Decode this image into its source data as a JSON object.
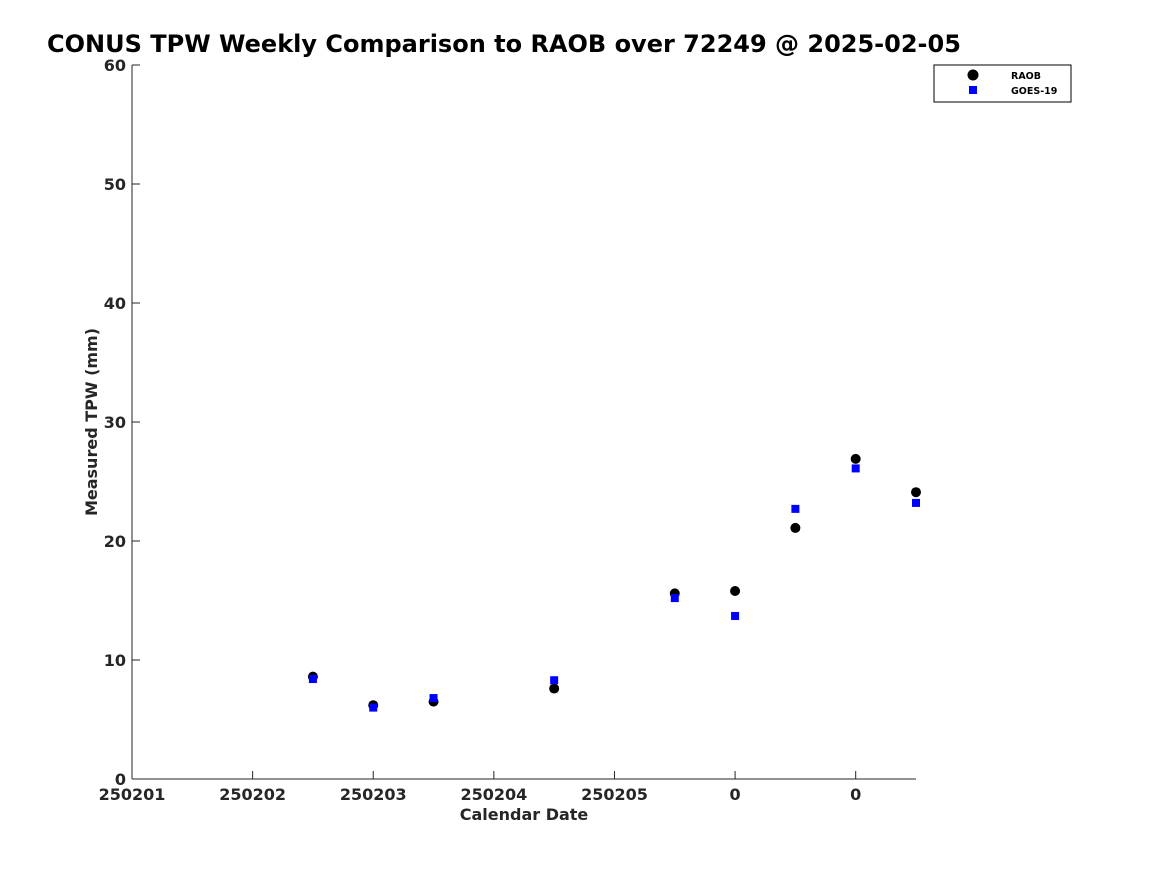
{
  "chart_data": {
    "type": "scatter",
    "title": "CONUS TPW Weekly Comparison to RAOB over 72249 @ 2025-02-05",
    "xlabel": "Calendar Date",
    "ylabel": "Measured TPW (mm)",
    "xlim": [
      0,
      13
    ],
    "ylim": [
      0,
      60
    ],
    "x_ticks": [
      0,
      2,
      4,
      6,
      8,
      10,
      12
    ],
    "x_tick_labels": [
      "250201",
      "250202",
      "250203",
      "250204",
      "250205",
      "0",
      "0"
    ],
    "y_ticks": [
      0,
      10,
      20,
      30,
      40,
      50,
      60
    ],
    "y_tick_labels": [
      "0",
      "10",
      "20",
      "30",
      "40",
      "50",
      "60"
    ],
    "legend_position": "top-right",
    "series": [
      {
        "name": "RAOB",
        "marker": "circle",
        "color": "#000000",
        "x": [
          3,
          4,
          5,
          7,
          9,
          10,
          11,
          12,
          13
        ],
        "y": [
          8.6,
          6.2,
          6.5,
          7.6,
          15.6,
          15.8,
          21.1,
          26.9,
          24.1
        ]
      },
      {
        "name": "GOES-19",
        "marker": "square",
        "color": "#0000ff",
        "x": [
          3,
          4,
          5,
          7,
          9,
          10,
          11,
          12,
          13
        ],
        "y": [
          8.4,
          6.0,
          6.8,
          8.3,
          15.2,
          13.7,
          22.7,
          26.1,
          23.2
        ]
      }
    ]
  }
}
